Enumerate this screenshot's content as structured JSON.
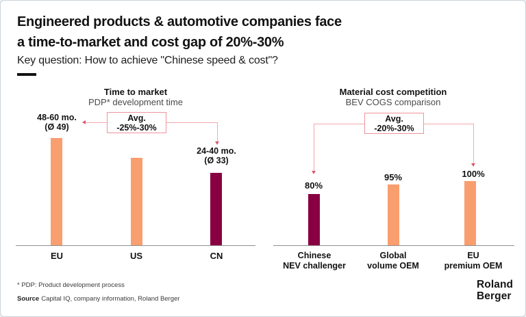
{
  "header": {
    "title": "Engineered products & automotive companies face\na time-to-market and cost gap of 20%-30%",
    "subtitle": "Key question: How to achieve \"Chinese speed & cost\"?"
  },
  "colors": {
    "orange": "#F99E6F",
    "maroon": "#880042",
    "pink_border": "#EF939C",
    "pink_line": "#F3A8AD",
    "arrow": "#DB5A6E",
    "axis": "#8F8F8F"
  },
  "chart_data": [
    {
      "type": "bar",
      "title": "Time to market",
      "subtitle": "PDP* development time",
      "annotation": "Avg.\n-25%-30%",
      "categories": [
        "EU",
        "US",
        "CN"
      ],
      "values": [
        49,
        40,
        33
      ],
      "value_labels": [
        "48-60 mo.\n(Ø 49)",
        "",
        "24-40 mo.\n(Ø 33)"
      ],
      "bar_colors": [
        "orange",
        "orange",
        "maroon"
      ],
      "unit": "months",
      "xlabel": "",
      "ylabel": "",
      "grid": false,
      "legend": false
    },
    {
      "type": "bar",
      "title": "Material cost competition",
      "subtitle": "BEV COGS comparison",
      "annotation": "Avg.\n-20%-30%",
      "categories": [
        "Chinese\nNEV challenger",
        "Global\nvolume OEM",
        "EU\npremium OEM"
      ],
      "values": [
        80,
        95,
        100
      ],
      "value_labels": [
        "80%",
        "95%",
        "100%"
      ],
      "bar_colors": [
        "maroon",
        "orange",
        "orange"
      ],
      "unit": "%",
      "xlabel": "",
      "ylabel": "",
      "ylim": [
        0,
        100
      ],
      "grid": false,
      "legend": false
    }
  ],
  "footer": {
    "footnote": "* PDP: Product development process",
    "source_label": "Source",
    "source_text": "Capital IQ, company information, Roland Berger",
    "logo": "Roland\nBerger"
  }
}
